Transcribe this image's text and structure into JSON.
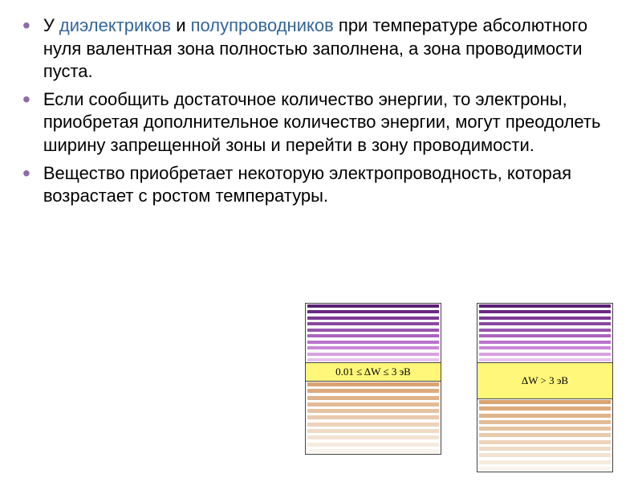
{
  "bullets": [
    {
      "segments": [
        {
          "text": "У ",
          "cls": ""
        },
        {
          "text": "диэлектриков",
          "cls": "hl1"
        },
        {
          "text": " и ",
          "cls": ""
        },
        {
          "text": "полупроводников",
          "cls": "hl2"
        },
        {
          "text": " при температуре абсолютного нуля валентная зона полностью заполнена, а зона проводимости пуста.",
          "cls": ""
        }
      ]
    },
    {
      "segments": [
        {
          "text": "Если сообщить достаточное количество энергии, то электроны, приобретая дополнительное количество энергии, могут преодолеть ширину запрещенной зоны и перейти в зону проводимости.",
          "cls": ""
        }
      ]
    },
    {
      "segments": [
        {
          "text": "Вещество приобретает некоторую электропроводность, которая возрастает с ростом температуры.",
          "cls": ""
        }
      ]
    }
  ],
  "diagram": {
    "top_colors": [
      "#5b1f73",
      "#6a2c82",
      "#7a3a91",
      "#8a48a0",
      "#9a56af",
      "#aa64be",
      "#ba72cd",
      "#c987d7",
      "#d9a0e1",
      "#e8c2ec"
    ],
    "bottom_colors": [
      "#d9a372",
      "#dcab7e",
      "#e0b48b",
      "#e3bc97",
      "#e6c3a2",
      "#e9cbae",
      "#ecd3ba",
      "#efdbc6",
      "#f2e3d2",
      "#f6ecdf",
      "#f9f4ec"
    ],
    "gap1_label": "0.01 ≤ ΔW ≤ 3 эВ",
    "gap2_label": "ΔW > 3 эВ",
    "gap_bg": "#fff77a"
  }
}
